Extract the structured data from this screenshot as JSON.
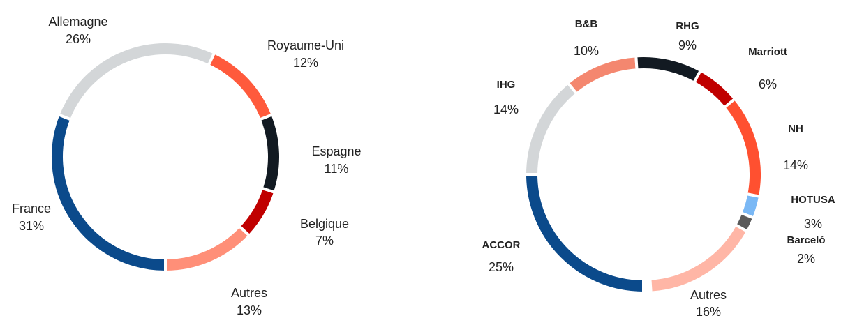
{
  "chart_data": [
    {
      "type": "donut",
      "categories": [
        "France",
        "Allemagne",
        "Royaume-Uni",
        "Espagne",
        "Belgique",
        "Autres"
      ],
      "values": [
        31,
        26,
        12,
        11,
        7,
        13
      ],
      "value_labels": [
        "31%",
        "26%",
        "12%",
        "11%",
        "7%",
        "13%"
      ],
      "colors": [
        "#0b4a8b",
        "#d3d6d8",
        "#ff5a3c",
        "#121a22",
        "#c00000",
        "#ff8f78"
      ]
    },
    {
      "type": "donut",
      "categories": [
        "ACCOR",
        "IHG",
        "B&B",
        "RHG",
        "Marriott",
        "NH",
        "HOTUSA",
        "Barceló",
        "Autres"
      ],
      "values": [
        25,
        14,
        10,
        9,
        6,
        14,
        3,
        2,
        16
      ],
      "value_labels": [
        "25%",
        "14%",
        "10%",
        "9%",
        "6%",
        "14%",
        "3%",
        "2%",
        "16%"
      ],
      "colors": [
        "#0b4a8b",
        "#d3d6d8",
        "#f4876f",
        "#121a22",
        "#c00000",
        "#ff5030",
        "#7ab8f5",
        "#5a5a5a",
        "#ffb6a6"
      ]
    }
  ]
}
